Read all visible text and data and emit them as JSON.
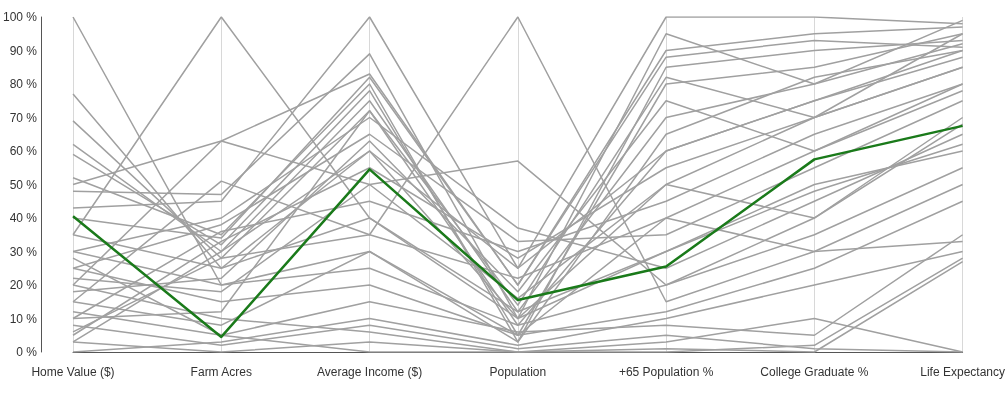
{
  "chart_data": {
    "type": "line",
    "categories": [
      "Home Value ($)",
      "Farm Acres",
      "Average Income ($)",
      "Population",
      "+65 Population %",
      "College Graduate %",
      "Life Expectancy"
    ],
    "ylim": [
      0,
      100
    ],
    "yticks": [
      {
        "value": 0,
        "label": "0 %"
      },
      {
        "value": 10,
        "label": "10 %"
      },
      {
        "value": 20,
        "label": "20 %"
      },
      {
        "value": 30,
        "label": "30 %"
      },
      {
        "value": 40,
        "label": "40 %"
      },
      {
        "value": 50,
        "label": "50 %"
      },
      {
        "value": 60,
        "label": "60 %"
      },
      {
        "value": 70,
        "label": "70 %"
      },
      {
        "value": 80,
        "label": "80 %"
      },
      {
        "value": 90,
        "label": "90 %"
      },
      {
        "value": 100,
        "label": "100 %"
      }
    ],
    "grid": "x",
    "marker": "none",
    "line_style": "solid",
    "series": [
      {
        "color": "#a0a0a0",
        "values": [
          100,
          20,
          30,
          5,
          40,
          60,
          80
        ]
      },
      {
        "color": "#a0a0a0",
        "values": [
          77,
          25,
          60,
          10,
          50,
          70,
          85
        ]
      },
      {
        "color": "#a0a0a0",
        "values": [
          69,
          28,
          72,
          8,
          60,
          75,
          90
        ]
      },
      {
        "color": "#a0a0a0",
        "values": [
          62,
          30,
          75,
          12,
          70,
          80,
          92
        ]
      },
      {
        "color": "#a0a0a0",
        "values": [
          59,
          32,
          78,
          5,
          80,
          85,
          95
        ]
      },
      {
        "color": "#a0a0a0",
        "values": [
          52,
          35,
          80,
          3,
          85,
          90,
          93
        ]
      },
      {
        "color": "#a0a0a0",
        "values": [
          50,
          63,
          83,
          20,
          90,
          95,
          97
        ]
      },
      {
        "color": "#a0a0a0",
        "values": [
          48,
          47,
          89,
          10,
          95,
          80,
          99
        ]
      },
      {
        "color": "#a0a0a0",
        "values": [
          43,
          45,
          100,
          25,
          100,
          100,
          98
        ]
      },
      {
        "color": "#a0a0a0",
        "values": [
          35,
          100,
          40,
          10,
          30,
          50,
          60
        ]
      },
      {
        "color": "#a0a0a0",
        "values": [
          20,
          63,
          50,
          57,
          20,
          40,
          70
        ]
      },
      {
        "color": "#a0a0a0",
        "values": [
          15,
          51,
          35,
          100,
          15,
          30,
          50
        ]
      },
      {
        "color": "#a0a0a0",
        "values": [
          30,
          40,
          70,
          37,
          25,
          45,
          65
        ]
      },
      {
        "color": "#a0a0a0",
        "values": [
          25,
          38,
          65,
          33,
          35,
          55,
          75
        ]
      },
      {
        "color": "#a0a0a0",
        "values": [
          10,
          36,
          45,
          30,
          45,
          65,
          80
        ]
      },
      {
        "color": "#a0a0a0",
        "values": [
          5,
          33,
          55,
          28,
          55,
          70,
          85
        ]
      },
      {
        "color": "#a0a0a0",
        "values": [
          3,
          30,
          60,
          25,
          60,
          75,
          88
        ]
      },
      {
        "color": "#a0a0a0",
        "values": [
          0,
          3,
          10,
          2,
          10,
          20,
          30
        ]
      },
      {
        "color": "#a0a0a0",
        "values": [
          3,
          0,
          3,
          0,
          0,
          2,
          28
        ]
      },
      {
        "color": "#a0a0a0",
        "values": [
          8,
          2,
          8,
          1,
          5,
          1,
          0
        ]
      },
      {
        "color": "#a0a0a0",
        "values": [
          12,
          5,
          0,
          0,
          3,
          10,
          0
        ]
      },
      {
        "color": "#a0a0a0",
        "values": [
          20,
          10,
          6,
          0,
          1,
          0,
          27
        ]
      },
      {
        "color": "#a0a0a0",
        "values": [
          25,
          15,
          20,
          5,
          12,
          25,
          45
        ]
      },
      {
        "color": "#a0a0a0",
        "values": [
          30,
          20,
          25,
          8,
          20,
          35,
          55
        ]
      },
      {
        "color": "#a0a0a0",
        "values": [
          35,
          25,
          40,
          12,
          30,
          48,
          62
        ]
      },
      {
        "color": "#a0a0a0",
        "values": [
          15,
          8,
          30,
          3,
          65,
          82,
          90
        ]
      },
      {
        "color": "#a0a0a0",
        "values": [
          10,
          12,
          72,
          14,
          82,
          70,
          95
        ]
      },
      {
        "color": "#a0a0a0",
        "values": [
          18,
          22,
          63,
          18,
          75,
          60,
          78
        ]
      },
      {
        "color": "#a0a0a0",
        "values": [
          22,
          18,
          50,
          16,
          50,
          40,
          68
        ]
      },
      {
        "color": "#a0a0a0",
        "values": [
          28,
          5,
          15,
          6,
          8,
          5,
          35
        ]
      },
      {
        "color": "#a0a0a0",
        "values": [
          6,
          28,
          35,
          22,
          40,
          30,
          33
        ]
      },
      {
        "color": "#a0a0a0",
        "values": [
          40,
          34,
          82,
          20,
          88,
          93,
          91
        ]
      },
      {
        "color": "#1a7a1a",
        "values": [
          40.5,
          4.5,
          54.5,
          15.5,
          25.5,
          57.5,
          67.5
        ]
      }
    ]
  }
}
